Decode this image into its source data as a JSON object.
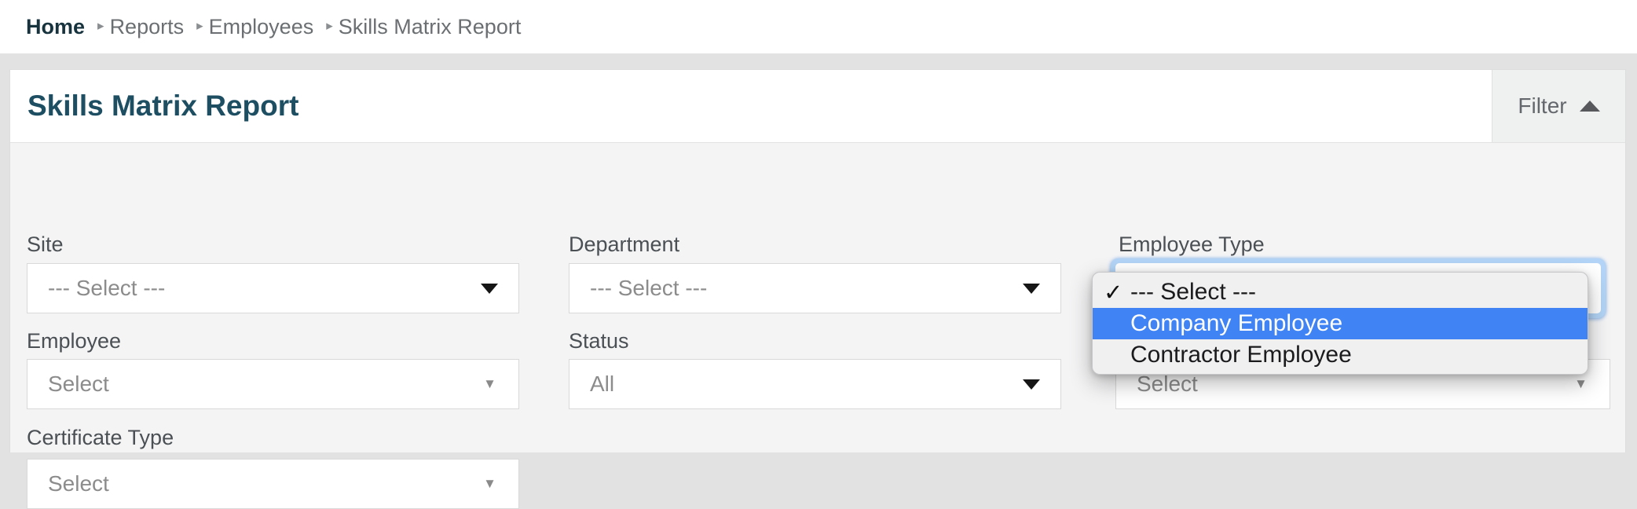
{
  "breadcrumb": {
    "separator": "▸",
    "items": [
      {
        "label": "Home"
      },
      {
        "label": "Reports"
      },
      {
        "label": "Employees"
      },
      {
        "label": "Skills Matrix Report"
      }
    ]
  },
  "panel": {
    "title": "Skills Matrix Report",
    "filter_toggle": {
      "label": "Filter",
      "icon": "chevron-up"
    }
  },
  "filters": {
    "site": {
      "label": "Site",
      "value": "--- Select ---"
    },
    "department": {
      "label": "Department",
      "value": "--- Select ---"
    },
    "employee_type": {
      "label": "Employee Type",
      "value": "",
      "focused": true,
      "dropdown": {
        "check_glyph": "✓",
        "options": [
          {
            "label": "--- Select ---",
            "checked": true,
            "highlighted": false
          },
          {
            "label": "Company Employee",
            "checked": false,
            "highlighted": true
          },
          {
            "label": "Contractor Employee",
            "checked": false,
            "highlighted": false
          }
        ]
      }
    },
    "employee": {
      "label": "Employee",
      "value": "Select"
    },
    "status": {
      "label": "Status",
      "value": "All"
    },
    "employee_type_secondary": {
      "value": "Select"
    },
    "certificate_type": {
      "label": "Certificate Type",
      "value": "Select"
    }
  },
  "icons": {
    "dropdown_arrow_bold": "▼",
    "dropdown_arrow_thin": "▼"
  },
  "colors": {
    "title": "#1d4e62",
    "highlight_blue": "#3f83f4",
    "focus_ring": "#b3d4f6",
    "page_background": "#e2e2e3",
    "panel_body": "#f4f4f5"
  }
}
